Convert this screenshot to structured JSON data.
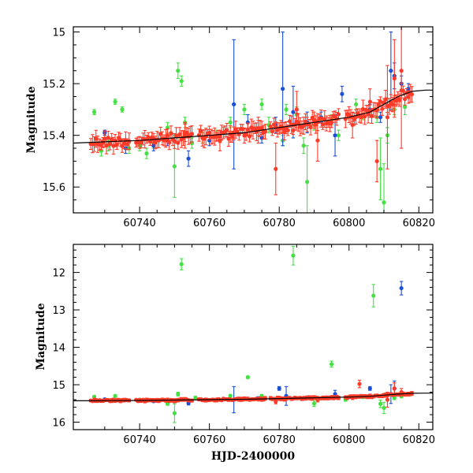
{
  "chart_data": [
    {
      "type": "scatter",
      "panel": "top",
      "xlabel": "",
      "ylabel": "Magnitude",
      "xlim": [
        60721,
        60824
      ],
      "ylim": [
        15.7,
        14.98
      ],
      "y_inverted": true,
      "x_ticks": [
        60740,
        60760,
        60780,
        60800,
        60820
      ],
      "y_ticks": [
        15,
        15.2,
        15.4,
        15.6
      ],
      "y_tick_labels": [
        "15",
        "15.2",
        "15.4",
        "15.6"
      ],
      "colors": {
        "green": "#44e044",
        "blue": "#1a4fd6",
        "red": "#ff3a28",
        "trend": "#000000"
      },
      "trend_curve": {
        "x": [
          60721,
          60730,
          60740,
          60750,
          60760,
          60770,
          60780,
          60790,
          60800,
          60806,
          60810,
          60814,
          60818,
          60822,
          60824
        ],
        "y": [
          15.43,
          15.425,
          15.42,
          15.41,
          15.4,
          15.39,
          15.37,
          15.35,
          15.33,
          15.31,
          15.28,
          15.25,
          15.23,
          15.225,
          15.225
        ]
      },
      "series": [
        {
          "color": "green",
          "x": [
            60727,
            60729,
            60731,
            60733,
            60735,
            60737,
            60740,
            60744,
            60748,
            60750,
            60751,
            60752,
            60753,
            60755,
            60762,
            60766,
            60770,
            60775,
            60777,
            60782,
            60785,
            60788,
            60790,
            60795,
            60797,
            60802,
            60804,
            60806,
            60808,
            60809,
            60810,
            60811,
            60813,
            60816,
            60758,
            60742,
            60781,
            60787
          ],
          "y": [
            15.31,
            15.46,
            15.44,
            15.27,
            15.3,
            15.45,
            15.44,
            15.43,
            15.37,
            15.52,
            15.15,
            15.19,
            15.35,
            15.43,
            15.4,
            15.35,
            15.3,
            15.28,
            15.36,
            15.3,
            15.32,
            15.58,
            15.36,
            15.34,
            15.4,
            15.28,
            15.32,
            15.3,
            15.33,
            15.53,
            15.66,
            15.4,
            15.3,
            15.29,
            15.41,
            15.47,
            15.42,
            15.44
          ],
          "err": [
            0.01,
            0.02,
            0.02,
            0.01,
            0.01,
            0.02,
            0.02,
            0.02,
            0.02,
            0.12,
            0.03,
            0.02,
            0.02,
            0.02,
            0.02,
            0.02,
            0.02,
            0.02,
            0.03,
            0.02,
            0.03,
            0.14,
            0.02,
            0.02,
            0.02,
            0.02,
            0.02,
            0.03,
            0.02,
            0.12,
            0.15,
            0.03,
            0.02,
            0.03,
            0.02,
            0.02,
            0.02,
            0.03
          ]
        },
        {
          "color": "blue",
          "x": [
            60730,
            60736,
            60744,
            60748,
            60754,
            60760,
            60767,
            60771,
            60775,
            60779,
            60781,
            60784,
            60788,
            60792,
            60796,
            60798,
            60806,
            60809,
            60812,
            60813,
            60815,
            60817
          ],
          "y": [
            15.39,
            15.45,
            15.44,
            15.42,
            15.49,
            15.42,
            15.28,
            15.35,
            15.41,
            15.36,
            15.22,
            15.31,
            15.35,
            15.33,
            15.4,
            15.24,
            15.3,
            15.33,
            15.15,
            15.17,
            15.2,
            15.22
          ],
          "err": [
            0.01,
            0.02,
            0.02,
            0.02,
            0.03,
            0.02,
            0.25,
            0.03,
            0.02,
            0.03,
            0.22,
            0.1,
            0.04,
            0.02,
            0.08,
            0.03,
            0.02,
            0.02,
            0.15,
            0.05,
            0.03,
            0.02
          ]
        }
      ],
      "red_band": {
        "x_start": 60726,
        "x_end": 60818,
        "step": 0.5,
        "gaps": [
          [
            60737.5,
            60738.5
          ],
          [
            60755.5,
            60756.5
          ],
          [
            60776.5,
            60777
          ],
          [
            60797.5,
            60798.5
          ]
        ],
        "scatter": 0.02,
        "err": 0.025,
        "extra_points": {
          "x": [
            60753,
            60779,
            60785,
            60791,
            60801,
            60808,
            60811,
            60813,
            60815,
            60806,
            60774,
            60763
          ],
          "y": [
            15.4,
            15.53,
            15.3,
            15.42,
            15.36,
            15.5,
            15.33,
            15.18,
            15.15,
            15.27,
            15.38,
            15.42
          ],
          "err": [
            0.05,
            0.1,
            0.07,
            0.08,
            0.05,
            0.08,
            0.2,
            0.15,
            0.3,
            0.05,
            0.05,
            0.04
          ]
        }
      }
    },
    {
      "type": "scatter",
      "panel": "bottom",
      "xlabel": "HJD-2400000",
      "ylabel": "Magnitude",
      "xlim": [
        60721,
        60824
      ],
      "ylim": [
        16.2,
        11.25
      ],
      "y_inverted": true,
      "x_ticks": [
        60740,
        60760,
        60780,
        60800,
        60820
      ],
      "y_ticks": [
        12,
        13,
        14,
        15,
        16
      ],
      "y_tick_labels": [
        "12",
        "13",
        "14",
        "15",
        "16"
      ],
      "colors": {
        "green": "#44e044",
        "blue": "#1a4fd6",
        "red": "#ff3a28",
        "trend": "#000000"
      },
      "trend_curve": {
        "x": [
          60721,
          60730,
          60740,
          60750,
          60760,
          60770,
          60780,
          60790,
          60800,
          60806,
          60810,
          60814,
          60818,
          60822,
          60824
        ],
        "y": [
          15.43,
          15.425,
          15.42,
          15.41,
          15.4,
          15.39,
          15.37,
          15.35,
          15.33,
          15.31,
          15.28,
          15.25,
          15.23,
          15.225,
          15.225
        ]
      },
      "series": [
        {
          "color": "green",
          "x": [
            60727,
            60733,
            60740,
            60748,
            60750,
            60751,
            60752,
            60756,
            60766,
            60771,
            60775,
            60782,
            60784,
            60786,
            60790,
            60795,
            60799,
            60804,
            60807,
            60809,
            60810,
            60813,
            60815,
            60817
          ],
          "y": [
            15.32,
            15.3,
            15.4,
            15.5,
            15.76,
            15.25,
            11.78,
            15.35,
            15.3,
            14.8,
            15.3,
            15.33,
            11.55,
            15.36,
            15.5,
            14.45,
            15.4,
            15.33,
            12.62,
            15.51,
            15.62,
            15.35,
            15.3,
            15.25
          ],
          "err": [
            0.02,
            0.02,
            0.02,
            0.05,
            0.25,
            0.05,
            0.15,
            0.04,
            0.04,
            0.03,
            0.04,
            0.03,
            0.25,
            0.04,
            0.08,
            0.08,
            0.04,
            0.04,
            0.3,
            0.1,
            0.15,
            0.05,
            0.05,
            0.04
          ]
        },
        {
          "color": "blue",
          "x": [
            60730,
            60744,
            60754,
            60767,
            60774,
            60780,
            60782,
            60788,
            60796,
            60806,
            60812,
            60813,
            60815
          ],
          "y": [
            15.39,
            15.44,
            15.49,
            15.4,
            15.37,
            15.1,
            15.3,
            15.35,
            15.25,
            15.1,
            15.25,
            15.1,
            12.42
          ],
          "err": [
            0.03,
            0.03,
            0.05,
            0.35,
            0.05,
            0.05,
            0.25,
            0.05,
            0.1,
            0.05,
            0.25,
            0.2,
            0.18
          ]
        }
      ],
      "red_band": {
        "x_start": 60726,
        "x_end": 60818,
        "step": 0.5,
        "gaps": [
          [
            60737.5,
            60738.5
          ],
          [
            60755.5,
            60756.5
          ],
          [
            60776.5,
            60777
          ],
          [
            60797.5,
            60798.5
          ]
        ],
        "scatter": 0.02,
        "err": 0.04,
        "extra_points": {
          "x": [
            60803,
            60811,
            60813,
            60815,
            60779,
            60791
          ],
          "y": [
            14.98,
            15.4,
            15.1,
            15.2,
            15.45,
            15.4
          ],
          "err": [
            0.1,
            0.2,
            0.15,
            0.1,
            0.06,
            0.06
          ]
        }
      }
    }
  ]
}
